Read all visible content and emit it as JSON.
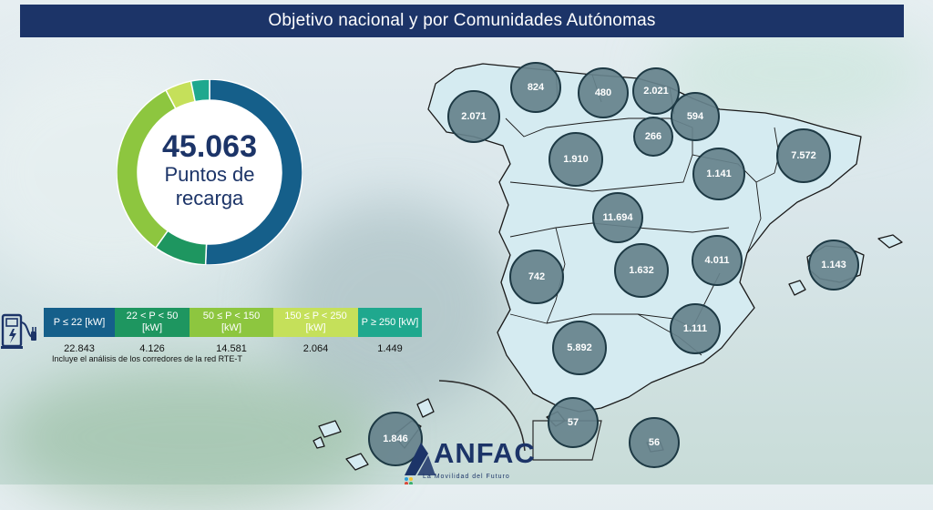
{
  "header": {
    "title": "Objetivo nacional y por Comunidades Autónomas"
  },
  "summary": {
    "total": "45.063",
    "total_label": "Puntos de recarga"
  },
  "chart_data": [
    {
      "type": "pie",
      "categories": [
        "P ≤ 22 [kW]",
        "22 < P < 50 [kW]",
        "50 ≤ P < 150 [kW]",
        "150 ≤ P < 250 [kW]",
        "P ≥ 250 [kW]"
      ],
      "values": [
        22843,
        4126,
        14581,
        2064,
        1449
      ],
      "value_labels": [
        "22.843",
        "4.126",
        "14.581",
        "2.064",
        "1.449"
      ],
      "colors": [
        "#155f8a",
        "#1e9660",
        "#8dc63f",
        "#c5e05a",
        "#1fa88e"
      ]
    }
  ],
  "table_note": "Incluye el análisis de los corredores de la red RTE-T",
  "regions": [
    {
      "name": "Galicia",
      "label": "2.071",
      "value": 2071
    },
    {
      "name": "Asturias",
      "label": "824",
      "value": 824
    },
    {
      "name": "Cantabria",
      "label": "480",
      "value": 480
    },
    {
      "name": "País Vasco",
      "label": "2.021",
      "value": 2021
    },
    {
      "name": "Navarra",
      "label": "594",
      "value": 594
    },
    {
      "name": "La Rioja",
      "label": "266",
      "value": 266
    },
    {
      "name": "Castilla y León",
      "label": "1.910",
      "value": 1910
    },
    {
      "name": "Aragón",
      "label": "1.141",
      "value": 1141
    },
    {
      "name": "Cataluña",
      "label": "7.572",
      "value": 7572
    },
    {
      "name": "Madrid",
      "label": "11.694",
      "value": 11694
    },
    {
      "name": "Comunidad Valenciana",
      "label": "4.011",
      "value": 4011
    },
    {
      "name": "Baleares",
      "label": "1.143",
      "value": 1143
    },
    {
      "name": "Extremadura",
      "label": "742",
      "value": 742
    },
    {
      "name": "Castilla-La Mancha",
      "label": "1.632",
      "value": 1632
    },
    {
      "name": "Murcia",
      "label": "1.111",
      "value": 1111
    },
    {
      "name": "Andalucía",
      "label": "5.892",
      "value": 5892
    },
    {
      "name": "Ceuta",
      "label": "57",
      "value": 57
    },
    {
      "name": "Melilla",
      "label": "56",
      "value": 56
    },
    {
      "name": "Canarias",
      "label": "1.846",
      "value": 1846
    }
  ],
  "logo": {
    "text": "ANFAC",
    "tagline": "La Movilidad del Futuro"
  },
  "icons": {
    "legend": "ev-charger-icon"
  }
}
